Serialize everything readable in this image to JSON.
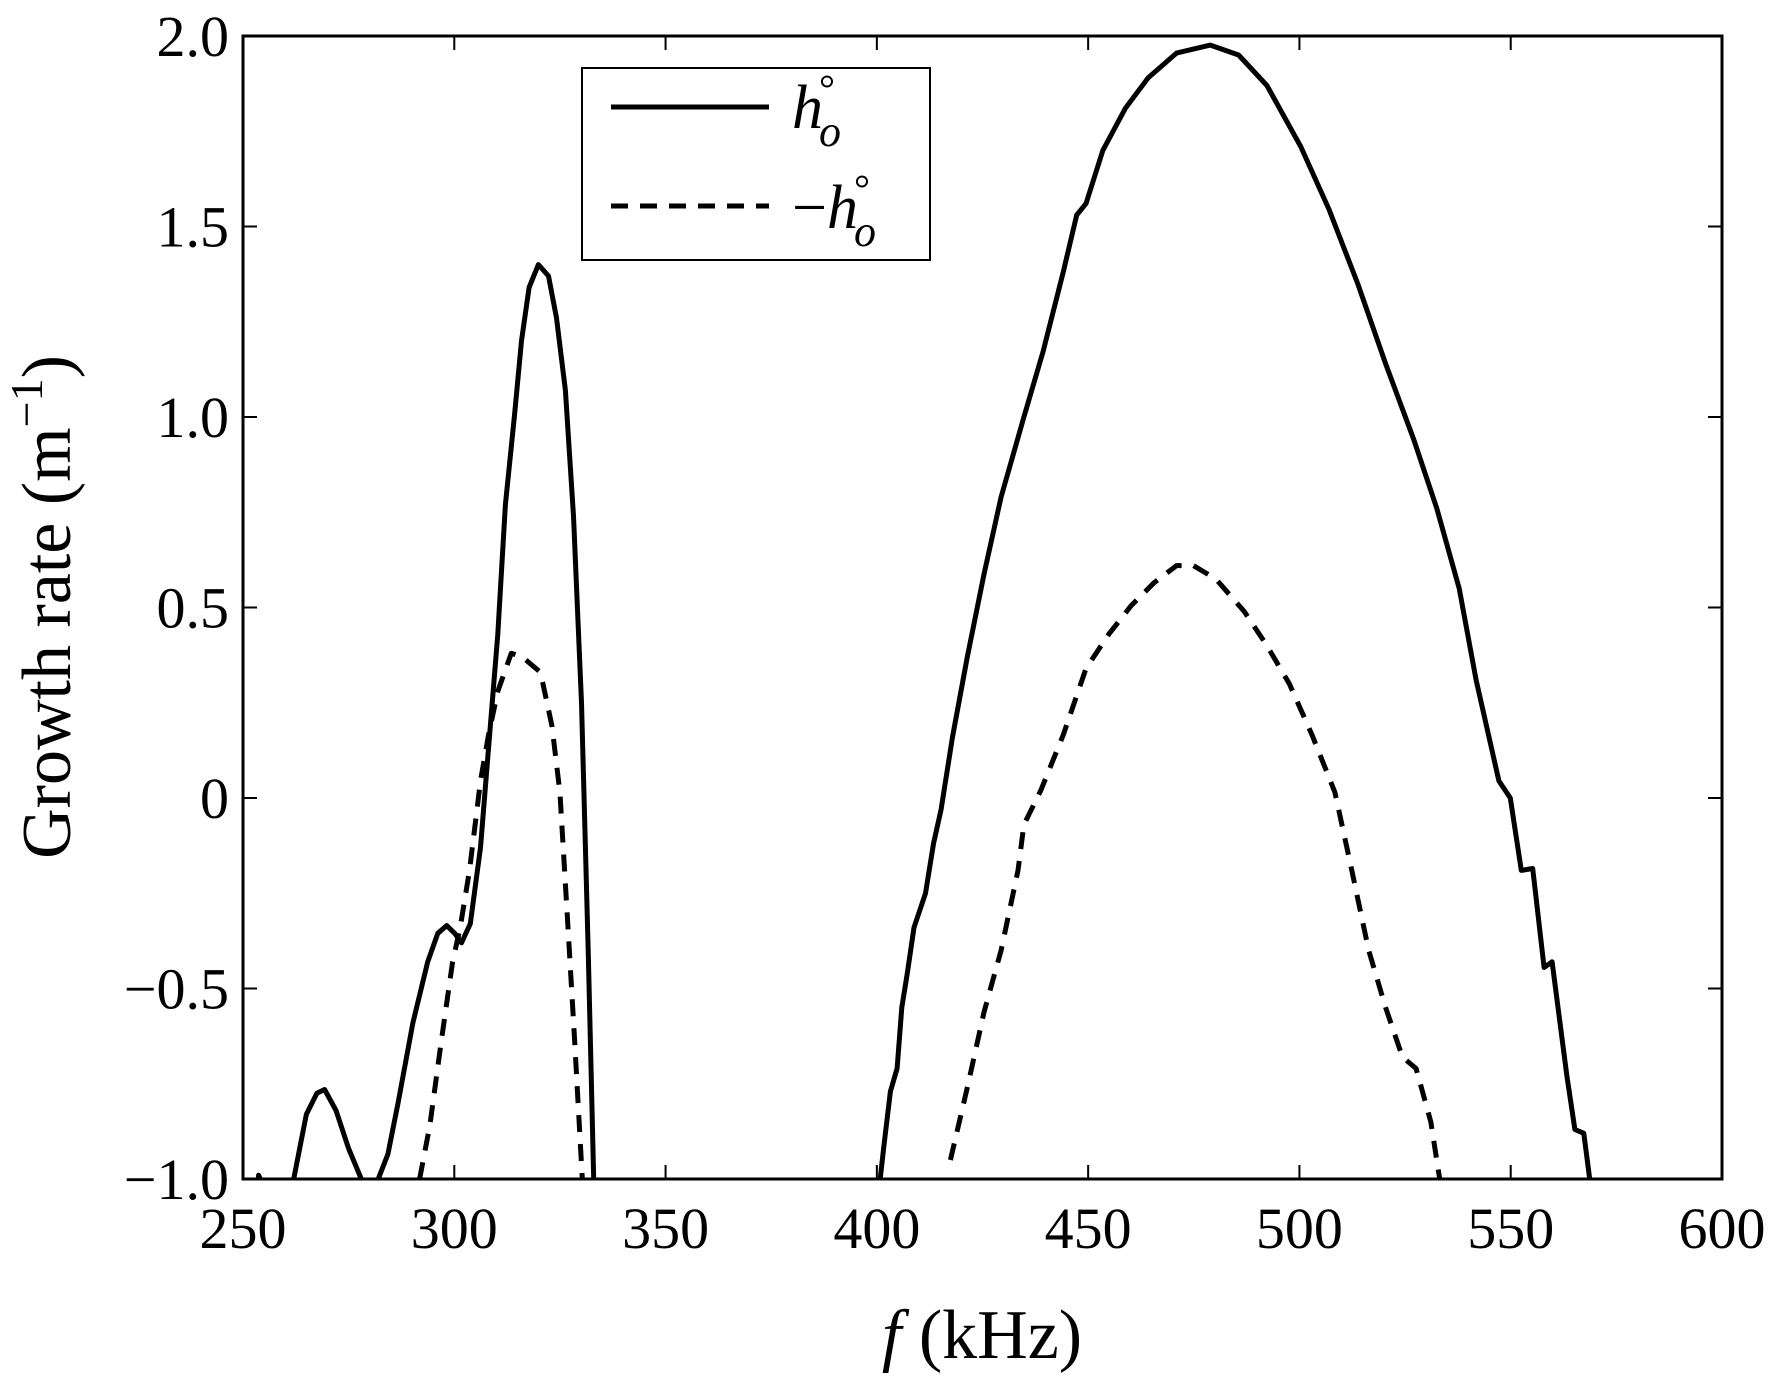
{
  "chart_data": {
    "type": "line",
    "title": "",
    "xlabel_italic": "f",
    "xlabel_rest": " (kHz)",
    "ylabel": "Growth rate (m",
    "ylabel_sup": "−1",
    "ylabel_close": ")",
    "xlim": [
      250,
      600
    ],
    "ylim": [
      -1.0,
      2.0
    ],
    "xticks": [
      250,
      300,
      350,
      400,
      450,
      500,
      550,
      600
    ],
    "xtick_labels": [
      "250",
      "300",
      "350",
      "400",
      "450",
      "500",
      "550",
      "600"
    ],
    "yticks": [
      -1.0,
      -0.5,
      0,
      0.5,
      1.0,
      1.5,
      2.0
    ],
    "ytick_labels": [
      "−1.0",
      "−0.5",
      "0",
      "0.5",
      "1.0",
      "1.5",
      "2.0"
    ],
    "grid": false,
    "legend_placement": "top-center",
    "series": [
      {
        "name": "h°o",
        "legend_main": "h",
        "legend_sup": "°",
        "legend_sub": "o",
        "legend_prefix": "",
        "style": "solid",
        "color": "#000000",
        "segments": [
          [
            [
              253.2,
              -1.05
            ],
            [
              253.7,
              -0.99
            ],
            [
              256,
              -1.05
            ]
          ],
          [
            [
              262,
              -1.0
            ],
            [
              265,
              -0.83
            ],
            [
              267.5,
              -0.775
            ],
            [
              269.3,
              -0.765
            ],
            [
              272,
              -0.82
            ],
            [
              275,
              -0.92
            ],
            [
              278,
              -1.0
            ]
          ],
          [
            [
              282,
              -1.0
            ],
            [
              284.3,
              -0.935
            ],
            [
              286.7,
              -0.8
            ],
            [
              290.2,
              -0.59
            ],
            [
              293.7,
              -0.43
            ],
            [
              296.1,
              -0.355
            ],
            [
              298.2,
              -0.335
            ],
            [
              300.1,
              -0.355
            ],
            [
              301.7,
              -0.38
            ],
            [
              303.8,
              -0.33
            ],
            [
              306.2,
              -0.13
            ],
            [
              308.1,
              0.13
            ],
            [
              310.3,
              0.43
            ],
            [
              312.1,
              0.77
            ],
            [
              314.3,
              1.01
            ],
            [
              315.9,
              1.2
            ],
            [
              317.7,
              1.34
            ],
            [
              319.9,
              1.4
            ],
            [
              322.3,
              1.37
            ],
            [
              324.2,
              1.26
            ],
            [
              326.3,
              1.07
            ],
            [
              328.2,
              0.74
            ],
            [
              330.1,
              0.25
            ],
            [
              331.7,
              -0.4
            ],
            [
              333,
              -1.0
            ]
          ],
          [
            [
              400.8,
              -1.0
            ],
            [
              401.6,
              -0.92
            ],
            [
              403.2,
              -0.77
            ],
            [
              404.8,
              -0.71
            ],
            [
              405.9,
              -0.55
            ],
            [
              407.2,
              -0.46
            ],
            [
              408.8,
              -0.34
            ],
            [
              411.5,
              -0.25
            ],
            [
              413.4,
              -0.12
            ],
            [
              415.2,
              -0.03
            ],
            [
              417.9,
              0.16
            ],
            [
              421.4,
              0.37
            ],
            [
              425.4,
              0.59
            ],
            [
              429.4,
              0.79
            ],
            [
              434.8,
              1.0
            ],
            [
              439.3,
              1.17
            ],
            [
              444.1,
              1.38
            ],
            [
              447.3,
              1.53
            ],
            [
              449.5,
              1.56
            ],
            [
              453.5,
              1.7
            ],
            [
              458.8,
              1.81
            ],
            [
              464.2,
              1.89
            ],
            [
              470.9,
              1.955
            ],
            [
              478.9,
              1.976
            ],
            [
              485.6,
              1.95
            ],
            [
              492.3,
              1.87
            ],
            [
              500.3,
              1.71
            ],
            [
              507.0,
              1.545
            ],
            [
              513.8,
              1.35
            ],
            [
              520.4,
              1.14
            ],
            [
              527.1,
              0.94
            ],
            [
              532.5,
              0.76
            ],
            [
              537.8,
              0.55
            ],
            [
              541.8,
              0.31
            ],
            [
              547.2,
              0.045
            ],
            [
              549.9,
              0.0
            ],
            [
              552.5,
              -0.19
            ],
            [
              555.2,
              -0.185
            ],
            [
              557.9,
              -0.445
            ],
            [
              559.8,
              -0.43
            ],
            [
              563.3,
              -0.73
            ],
            [
              565.2,
              -0.87
            ],
            [
              567.3,
              -0.88
            ],
            [
              568.7,
              -1.0
            ]
          ]
        ]
      },
      {
        "name": "−h°o",
        "legend_main": "h",
        "legend_sup": "°",
        "legend_sub": "o",
        "legend_prefix": "−",
        "style": "dashed",
        "color": "#000000",
        "segments": [
          [
            [
              291.8,
              -1.0
            ],
            [
              294.2,
              -0.86
            ],
            [
              296.9,
              -0.64
            ],
            [
              299.6,
              -0.43
            ],
            [
              301.4,
              -0.34
            ],
            [
              303.6,
              -0.19
            ],
            [
              306.2,
              0.045
            ],
            [
              308.1,
              0.165
            ],
            [
              310.3,
              0.28
            ],
            [
              313.5,
              0.38
            ],
            [
              316.1,
              0.37
            ],
            [
              320.4,
              0.33
            ],
            [
              323.1,
              0.19
            ],
            [
              325.0,
              0.015
            ],
            [
              326.9,
              -0.34
            ],
            [
              328.5,
              -0.64
            ],
            [
              330.3,
              -1.0
            ]
          ],
          [
            [
              417.4,
              -0.95
            ],
            [
              421.4,
              -0.76
            ],
            [
              425.4,
              -0.56
            ],
            [
              429.4,
              -0.4
            ],
            [
              433.4,
              -0.19
            ],
            [
              434.8,
              -0.07
            ],
            [
              438.8,
              0.02
            ],
            [
              444.1,
              0.165
            ],
            [
              449.5,
              0.34
            ],
            [
              454.9,
              0.43
            ],
            [
              460.2,
              0.505
            ],
            [
              465.6,
              0.565
            ],
            [
              470.9,
              0.61
            ],
            [
              474.9,
              0.61
            ],
            [
              480.2,
              0.575
            ],
            [
              486.9,
              0.49
            ],
            [
              492.3,
              0.4
            ],
            [
              497.6,
              0.3
            ],
            [
              503.0,
              0.165
            ],
            [
              508.4,
              0.015
            ],
            [
              512.4,
              -0.19
            ],
            [
              516.4,
              -0.4
            ],
            [
              520.4,
              -0.55
            ],
            [
              524.4,
              -0.68
            ],
            [
              527.6,
              -0.71
            ],
            [
              531.1,
              -0.85
            ],
            [
              533.2,
              -1.0
            ]
          ]
        ]
      }
    ]
  }
}
